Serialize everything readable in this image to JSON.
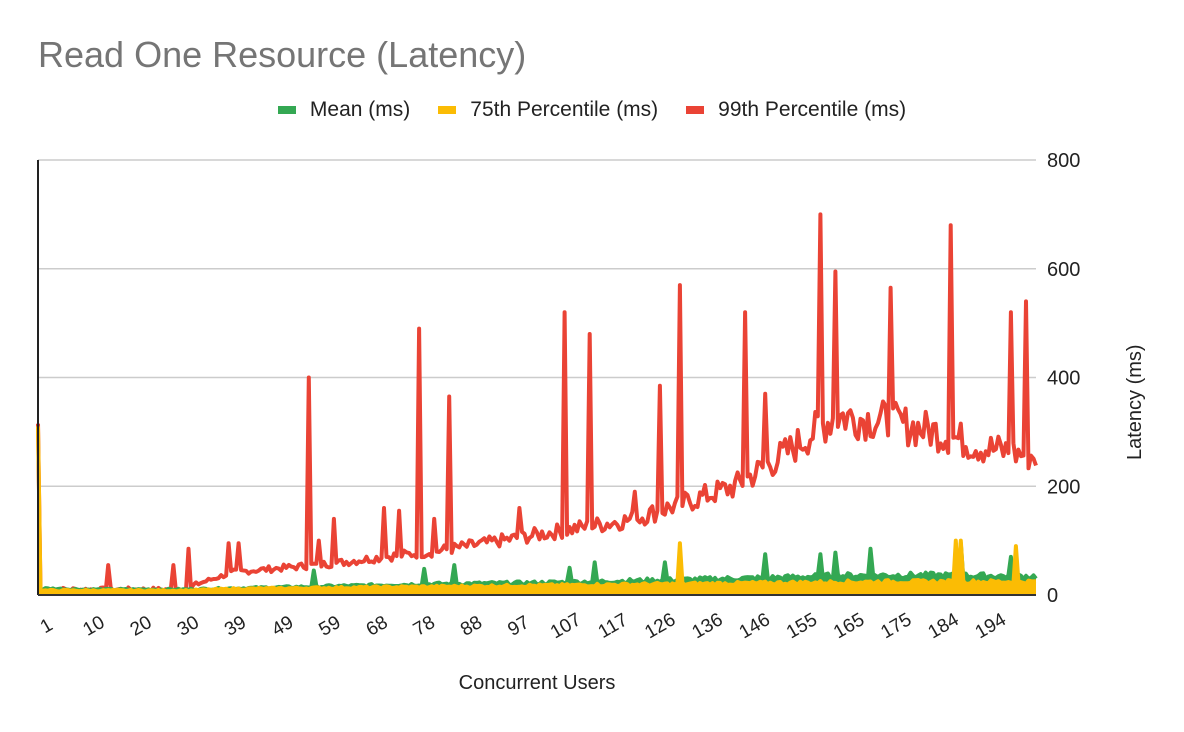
{
  "chart": {
    "title": "Read One Resource (Latency)",
    "legend": [
      {
        "label": "Mean (ms)",
        "color": "#34a853"
      },
      {
        "label": "75th Percentile (ms)",
        "color": "#fbbc04"
      },
      {
        "label": "99th Percentile (ms)",
        "color": "#ea4335"
      }
    ],
    "x_axis_title": "Concurrent Users",
    "y_axis_title": "Latency (ms)",
    "y_ticks": [
      "0",
      "200",
      "400",
      "600",
      "800"
    ],
    "x_ticks": [
      "1",
      "10",
      "20",
      "30",
      "39",
      "49",
      "59",
      "68",
      "78",
      "88",
      "97",
      "107",
      "117",
      "126",
      "136",
      "146",
      "155",
      "165",
      "175",
      "184",
      "194"
    ]
  },
  "chart_data": {
    "type": "area",
    "title": "Read One Resource (Latency)",
    "xlabel": "Concurrent Users",
    "ylabel": "Latency (ms)",
    "ylim": [
      0,
      800
    ],
    "y_axis_position": "right",
    "grid": true,
    "legend_position": "top",
    "x_range": [
      1,
      200
    ],
    "x_tick_labels": [
      "1",
      "10",
      "20",
      "30",
      "39",
      "49",
      "59",
      "68",
      "78",
      "88",
      "97",
      "107",
      "117",
      "126",
      "136",
      "146",
      "155",
      "165",
      "175",
      "184",
      "194"
    ],
    "series": [
      {
        "name": "Mean (ms)",
        "color": "#34a853",
        "baseline_every_10_users": {
          "x": [
            1,
            10,
            20,
            30,
            40,
            50,
            60,
            70,
            80,
            90,
            100,
            110,
            120,
            130,
            140,
            150,
            160,
            170,
            180,
            190,
            200
          ],
          "y": [
            12,
            10,
            10,
            10,
            12,
            14,
            16,
            18,
            20,
            21,
            22,
            24,
            26,
            28,
            30,
            32,
            35,
            36,
            36,
            35,
            34
          ]
        },
        "spikes": [
          {
            "x": 56,
            "y": 45
          },
          {
            "x": 78,
            "y": 48
          },
          {
            "x": 84,
            "y": 55
          },
          {
            "x": 107,
            "y": 50
          },
          {
            "x": 112,
            "y": 60
          },
          {
            "x": 126,
            "y": 60
          },
          {
            "x": 146,
            "y": 75
          },
          {
            "x": 157,
            "y": 75
          },
          {
            "x": 160,
            "y": 78
          },
          {
            "x": 167,
            "y": 85
          },
          {
            "x": 185,
            "y": 95
          },
          {
            "x": 195,
            "y": 70
          }
        ]
      },
      {
        "name": "75th Percentile (ms)",
        "color": "#fbbc04",
        "baseline_every_10_users": {
          "x": [
            1,
            10,
            20,
            30,
            40,
            50,
            60,
            70,
            80,
            90,
            100,
            110,
            120,
            130,
            140,
            150,
            160,
            170,
            180,
            190,
            200
          ],
          "y": [
            310,
            8,
            8,
            8,
            11,
            12,
            13,
            14,
            15,
            16,
            17,
            18,
            19,
            20,
            21,
            22,
            23,
            24,
            24,
            24,
            24
          ]
        },
        "spikes": [
          {
            "x": 129,
            "y": 95
          },
          {
            "x": 184,
            "y": 100
          },
          {
            "x": 185,
            "y": 100
          },
          {
            "x": 196,
            "y": 90
          }
        ]
      },
      {
        "name": "99th Percentile (ms)",
        "color": "#ea4335",
        "baseline_every_10_users": {
          "x": [
            1,
            10,
            20,
            30,
            40,
            50,
            60,
            70,
            80,
            90,
            100,
            110,
            120,
            130,
            140,
            150,
            160,
            170,
            180,
            190,
            200
          ],
          "y": [
            315,
            10,
            10,
            12,
            42,
            50,
            58,
            70,
            80,
            95,
            110,
            125,
            140,
            170,
            200,
            260,
            330,
            320,
            300,
            270,
            255
          ]
        },
        "spikes": [
          {
            "x": 15,
            "y": 55
          },
          {
            "x": 28,
            "y": 55
          },
          {
            "x": 31,
            "y": 85
          },
          {
            "x": 39,
            "y": 95
          },
          {
            "x": 41,
            "y": 95
          },
          {
            "x": 55,
            "y": 400
          },
          {
            "x": 57,
            "y": 100
          },
          {
            "x": 60,
            "y": 140
          },
          {
            "x": 70,
            "y": 160
          },
          {
            "x": 73,
            "y": 155
          },
          {
            "x": 77,
            "y": 490
          },
          {
            "x": 80,
            "y": 140
          },
          {
            "x": 83,
            "y": 365
          },
          {
            "x": 97,
            "y": 160
          },
          {
            "x": 106,
            "y": 520
          },
          {
            "x": 111,
            "y": 480
          },
          {
            "x": 120,
            "y": 190
          },
          {
            "x": 125,
            "y": 385
          },
          {
            "x": 129,
            "y": 570
          },
          {
            "x": 142,
            "y": 520
          },
          {
            "x": 146,
            "y": 370
          },
          {
            "x": 157,
            "y": 700
          },
          {
            "x": 160,
            "y": 595
          },
          {
            "x": 171,
            "y": 565
          },
          {
            "x": 183,
            "y": 680
          },
          {
            "x": 195,
            "y": 520
          },
          {
            "x": 198,
            "y": 540
          }
        ]
      }
    ]
  }
}
